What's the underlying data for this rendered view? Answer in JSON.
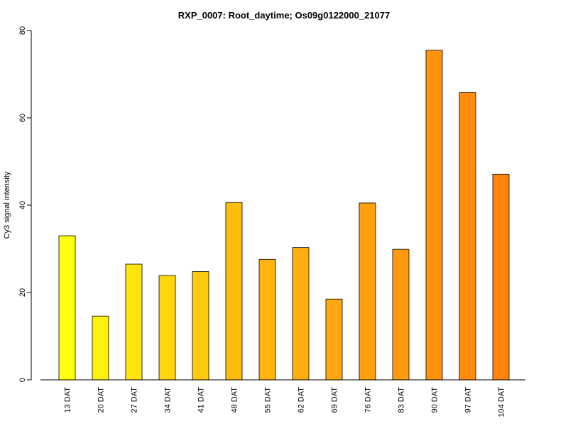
{
  "chart_data": {
    "type": "bar",
    "title": "RXP_0007: Root_daytime; Os09g0122000_21077",
    "xlabel": "",
    "ylabel": "Cy3 signal intensity",
    "ylim": [
      0,
      80
    ],
    "yticks": [
      0,
      20,
      40,
      60,
      80
    ],
    "categories": [
      "13 DAT",
      "20 DAT",
      "27 DAT",
      "34 DAT",
      "41 DAT",
      "48 DAT",
      "55 DAT",
      "62 DAT",
      "69 DAT",
      "76 DAT",
      "83 DAT",
      "90 DAT",
      "97 DAT",
      "104 DAT"
    ],
    "values": [
      33.0,
      14.6,
      26.5,
      23.9,
      24.8,
      40.6,
      27.6,
      30.3,
      18.5,
      40.5,
      29.9,
      75.5,
      65.8,
      47.1
    ],
    "bar_colors": [
      "#FFFF0E",
      "#FFF10E",
      "#FFE40E",
      "#FFD60E",
      "#FFC90E",
      "#FFBB0E",
      "#FFB40E",
      "#FFAE0E",
      "#FFA70E",
      "#FFA00E",
      "#FF990E",
      "#FF930E",
      "#FF8C0E",
      "#FF850E"
    ],
    "grid": false,
    "legend": "none"
  }
}
